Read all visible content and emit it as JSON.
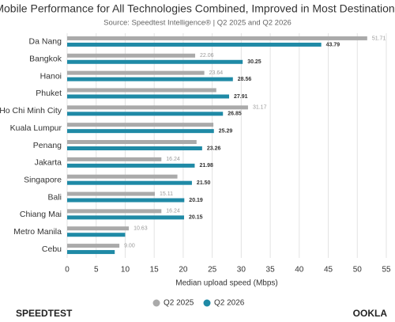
{
  "chart_data": {
    "type": "bar",
    "orientation": "horizontal",
    "title": "Mobile Performance for All Technologies Combined, Improved in Most Destinations",
    "subtitle": "Source: Speedtest Intelligence® | Q2 2025 and Q2 2026",
    "xlabel": "Median upload speed (Mbps)",
    "categories": [
      "Da Nang",
      "Bangkok",
      "Hanoi",
      "Phuket",
      "Ho Chi Minh City",
      "Kuala Lumpur",
      "Penang",
      "Jakarta",
      "Singapore",
      "Bali",
      "Chiang Mai",
      "Metro Manila",
      "Cebu"
    ],
    "series": [
      {
        "name": "Q2 2025",
        "color": "#aaaaaa",
        "values": [
          51.71,
          22.06,
          23.64,
          25.7,
          31.17,
          25.2,
          22.3,
          16.24,
          19.0,
          15.11,
          16.24,
          10.63,
          9.0
        ],
        "value_labels": [
          "51.71",
          "22.06",
          "23.64",
          null,
          "31.17",
          null,
          null,
          "16.24",
          null,
          "15.11",
          "16.24",
          "10.63",
          "9.00"
        ]
      },
      {
        "name": "Q2 2026",
        "color": "#1f8aa6",
        "values": [
          43.79,
          30.25,
          28.56,
          27.91,
          26.85,
          25.29,
          23.26,
          21.98,
          21.5,
          20.19,
          20.15,
          10.0,
          8.2
        ],
        "value_labels": [
          "43.79",
          "30.25",
          "28.56",
          "27.91",
          "26.85",
          "25.29",
          "23.26",
          "21.98",
          "21.50",
          "20.19",
          "20.15",
          null,
          null
        ]
      }
    ],
    "xlim": [
      0,
      55
    ],
    "xticks": [
      0,
      5,
      10,
      15,
      20,
      25,
      30,
      35,
      40,
      45,
      50,
      55
    ],
    "grid": true,
    "legend": "bottom"
  },
  "footer": {
    "left": "SPEEDTEST",
    "right": "OOKLA"
  }
}
